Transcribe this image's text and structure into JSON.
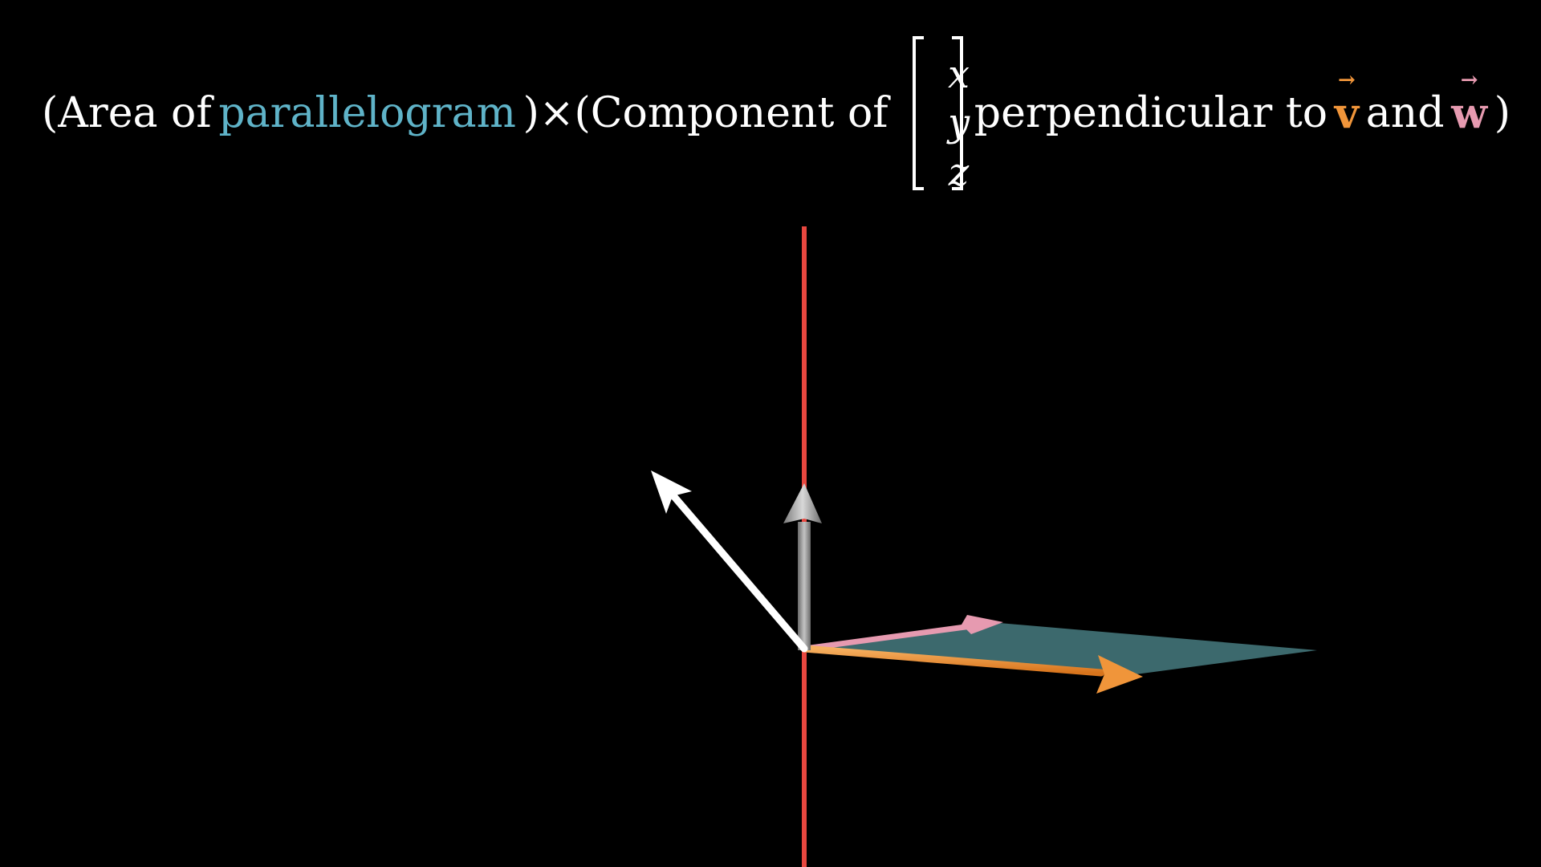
{
  "formula": {
    "open_paren": "(",
    "area_of": "Area of",
    "parallelogram": "parallelogram",
    "close_times": ")×(Component of",
    "matrix": [
      "x",
      "y",
      "z"
    ],
    "perpendicular_to": "perpendicular to",
    "v_letter": "v",
    "v_arrow": "→",
    "and": "and",
    "w_letter": "w",
    "w_arrow": "→",
    "close_paren": ")"
  },
  "colors": {
    "background": "#000000",
    "text": "#ffffff",
    "parallelogram": "#5fb3c8",
    "parallelogram_fill": "#3f6f73",
    "v": "#f0953a",
    "w": "#e69ab0",
    "axis": "#e8473f",
    "normal_vector": "#ffffff",
    "component_vector": "#a8a8a8"
  },
  "scene": {
    "vectors": [
      "vector-v",
      "vector-w",
      "vector-xyz",
      "perpendicular-component"
    ]
  }
}
